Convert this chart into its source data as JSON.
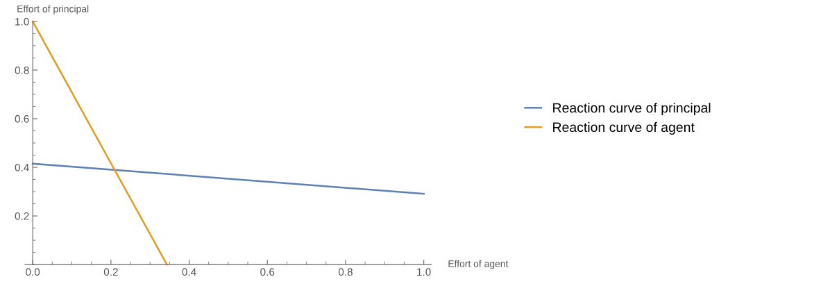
{
  "chart_data": {
    "type": "line",
    "xlabel": "Effort of agent",
    "ylabel": "Effort of principal",
    "series": [
      {
        "name": "Reaction curve of principal",
        "color": "#5e81b5",
        "x": [
          0,
          1.0
        ],
        "values": [
          0.415,
          0.291
        ]
      },
      {
        "name": "Reaction curve of agent",
        "color": "#e19c24",
        "x": [
          0,
          0.343
        ],
        "values": [
          1.0,
          0
        ]
      }
    ],
    "xlim": [
      -0.02,
      1.02
    ],
    "ylim": [
      0,
      1.0
    ],
    "xticks": [
      {
        "value": 0,
        "label": "0.0"
      },
      0.2,
      0.4,
      0.6,
      0.8,
      {
        "value": 1,
        "label": "1.0"
      }
    ],
    "yticks": [
      0.2,
      0.4,
      0.6,
      0.8,
      {
        "value": 1,
        "label": "1.0"
      }
    ],
    "grid": false,
    "legend": "right",
    "marker": "none",
    "line_style": "solid"
  }
}
